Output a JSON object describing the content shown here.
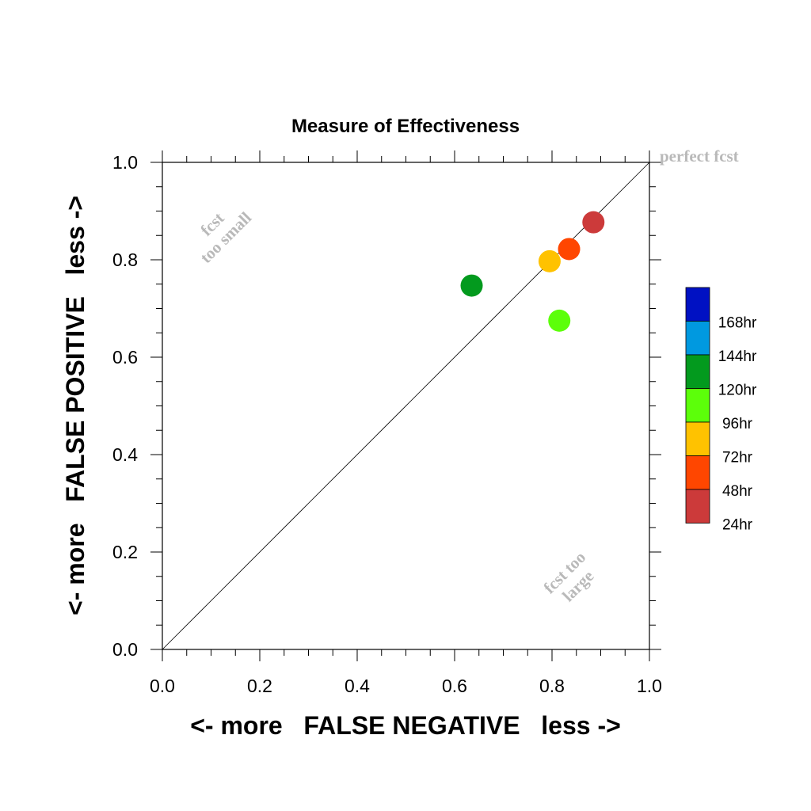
{
  "chart_data": {
    "type": "scatter",
    "title": "Measure of Effectiveness",
    "xlabel": "<- more   FALSE NEGATIVE   less ->",
    "ylabel": "<- more   FALSE POSITIVE   less ->",
    "xlim": [
      0,
      1
    ],
    "ylim": [
      0,
      1
    ],
    "x_ticks": [
      "0.0",
      "0.2",
      "0.4",
      "0.6",
      "0.8",
      "1.0"
    ],
    "y_ticks": [
      "0.0",
      "0.2",
      "0.4",
      "0.6",
      "0.8",
      "1.0"
    ],
    "grid": false,
    "reference_line": {
      "from": [
        0,
        0
      ],
      "to": [
        1,
        1
      ]
    },
    "annotations": {
      "perfect": "perfect fcst",
      "too_small_1": "fcst",
      "too_small_2": "too small",
      "too_large_1": "fcst too",
      "too_large_2": "large"
    },
    "legend": {
      "placement": "right",
      "entries": [
        {
          "label": "168hr",
          "color": "#0011c3"
        },
        {
          "label": "144hr",
          "color": "#0099e0"
        },
        {
          "label": "120hr",
          "color": "#039a1e"
        },
        {
          "label": "96hr",
          "color": "#5cff0a"
        },
        {
          "label": "72hr",
          "color": "#ffc200"
        },
        {
          "label": "48hr",
          "color": "#ff4600"
        },
        {
          "label": "24hr",
          "color": "#cc3a3a"
        }
      ]
    },
    "series": [
      {
        "name": "24hr",
        "x": 0.885,
        "y": 0.877,
        "color": "#cc3a3a"
      },
      {
        "name": "48hr",
        "x": 0.835,
        "y": 0.822,
        "color": "#ff4600"
      },
      {
        "name": "72hr",
        "x": 0.795,
        "y": 0.797,
        "color": "#ffc200"
      },
      {
        "name": "96hr",
        "x": 0.815,
        "y": 0.675,
        "color": "#5cff0a"
      },
      {
        "name": "120hr",
        "x": 0.635,
        "y": 0.747,
        "color": "#039a1e"
      }
    ]
  }
}
